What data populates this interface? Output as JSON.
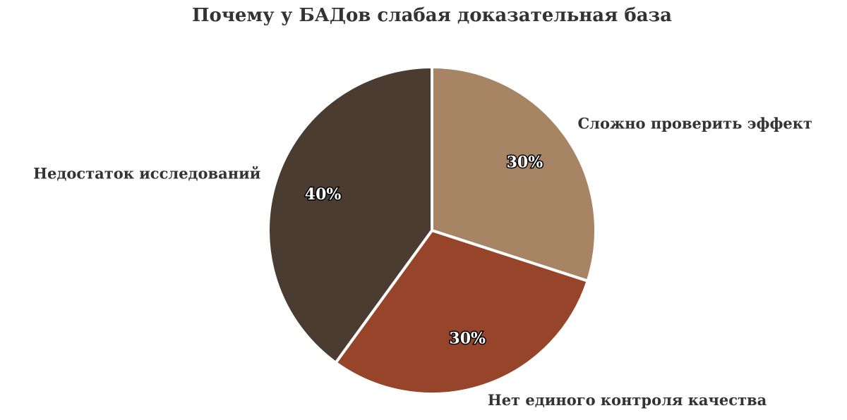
{
  "chart_data": {
    "type": "pie",
    "title": "Почему у БАДов слабая доказательная база",
    "categories": [
      "Сложно проверить эффект",
      "Нет единого контроля качества",
      "Недостаток исследований"
    ],
    "values": [
      30,
      30,
      40
    ],
    "value_labels": [
      "30%",
      "30%",
      "40%"
    ],
    "colors": [
      "#a68464",
      "#97452a",
      "#4a3c31"
    ]
  }
}
